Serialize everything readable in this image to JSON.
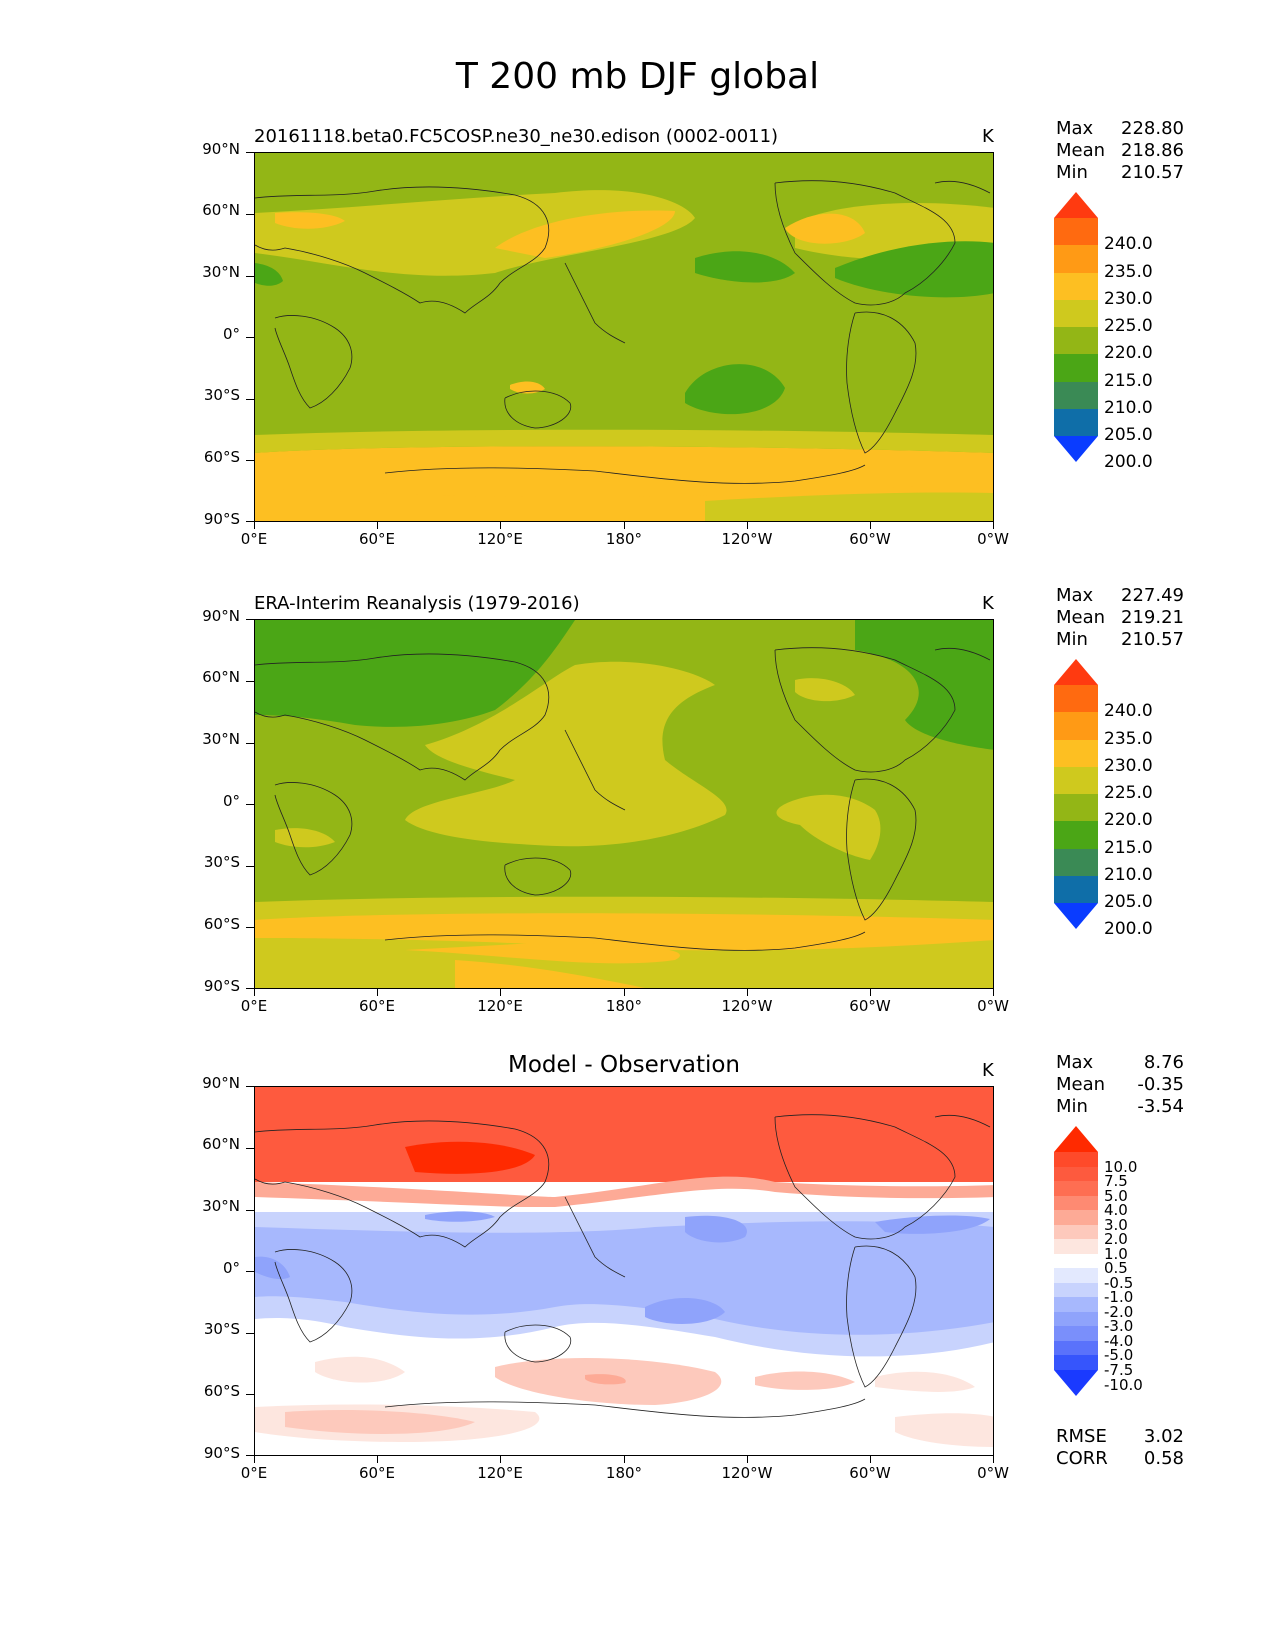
{
  "title": "T 200 mb DJF global",
  "lat_labels": [
    "90°N",
    "60°N",
    "30°N",
    "0°",
    "30°S",
    "60°S",
    "90°S"
  ],
  "lon_labels": [
    "0°E",
    "60°E",
    "120°E",
    "180°",
    "120°W",
    "60°W",
    "0°W"
  ],
  "panels": [
    {
      "id": "model",
      "title": "20161118.beta0.FC5COSP.ne30_ne30.edison (0002-0011)",
      "units": "K",
      "stats": {
        "max_label": "Max",
        "max": "228.80",
        "mean_label": "Mean",
        "mean": "218.86",
        "min_label": "Min",
        "min": "210.57"
      },
      "colorbar": {
        "labels": [
          "240.0",
          "235.0",
          "230.0",
          "225.0",
          "220.0",
          "215.0",
          "210.0",
          "205.0",
          "200.0"
        ],
        "colors": [
          "#ff3a10",
          "#ff6a10",
          "#ff9a15",
          "#fdbf22",
          "#cfc91e",
          "#93b616",
          "#4ba616",
          "#3a8a55",
          "#0f6ea8",
          "#0a3cff"
        ]
      }
    },
    {
      "id": "obs",
      "title": "ERA-Interim Reanalysis (1979-2016)",
      "units": "K",
      "stats": {
        "max_label": "Max",
        "max": "227.49",
        "mean_label": "Mean",
        "mean": "219.21",
        "min_label": "Min",
        "min": "210.57"
      },
      "colorbar": {
        "labels": [
          "240.0",
          "235.0",
          "230.0",
          "225.0",
          "220.0",
          "215.0",
          "210.0",
          "205.0",
          "200.0"
        ],
        "colors": [
          "#ff3a10",
          "#ff6a10",
          "#ff9a15",
          "#fdbf22",
          "#cfc91e",
          "#93b616",
          "#4ba616",
          "#3a8a55",
          "#0f6ea8",
          "#0a3cff"
        ]
      }
    },
    {
      "id": "diff",
      "title": "Model - Observation",
      "units": "K",
      "stats": {
        "max_label": "Max",
        "max": "8.76",
        "mean_label": "Mean",
        "mean": "-0.35",
        "min_label": "Min",
        "min": "-3.54"
      },
      "colorbar": {
        "labels": [
          "10.0",
          "7.5",
          "5.0",
          "4.0",
          "3.0",
          "2.0",
          "1.0",
          "0.5",
          "-0.5",
          "-1.0",
          "-2.0",
          "-3.0",
          "-4.0",
          "-5.0",
          "-7.5",
          "-10.0"
        ],
        "colors": [
          "#ff2a00",
          "#fe4a2a",
          "#fd5a3e",
          "#fe6e52",
          "#fe8a72",
          "#fdaa96",
          "#fdc9bc",
          "#fde6df",
          "#ffffff",
          "#e3e9fe",
          "#c8d3fd",
          "#a7b8fd",
          "#8fa3fb",
          "#7a8ffb",
          "#5a72fb",
          "#3655fc",
          "#1a3aff"
        ]
      },
      "rmse_label": "RMSE",
      "rmse": "3.02",
      "corr_label": "CORR",
      "corr": "0.58"
    }
  ]
}
